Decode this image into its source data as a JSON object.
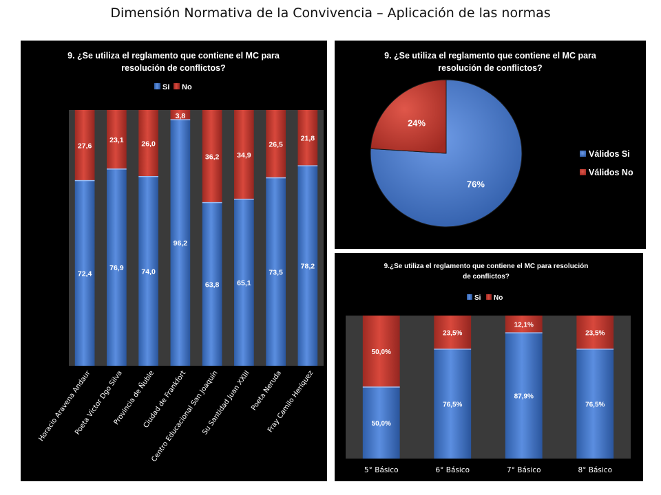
{
  "page": {
    "title": "Dimensión Normativa de la Convivencia – Aplicación de las normas"
  },
  "colors": {
    "si": "#4472c4",
    "no": "#c0392b",
    "plot_bg": "#3a3a3a",
    "panel_bg": "#000000",
    "text": "#ffffff"
  },
  "chart_data": [
    {
      "type": "bar",
      "stacked": true,
      "title": "9. ¿Se utiliza el reglamento que contiene el MC para resolución de conflictos?",
      "title_lines": [
        "9. ¿Se utiliza el reglamento que contiene el MC para",
        "resolución de conflictos?"
      ],
      "categories": [
        "Horacio Aravena Andaur",
        "Poeta Víctor Dgo Silva",
        "Provincia de Ñuble",
        "Ciudad de Frankfort",
        "Centro Educacional San Joaquín",
        "Su Santidad Juan XXIII",
        "Poeta Neruda",
        "Fray Camilo Heríquez"
      ],
      "series": [
        {
          "name": "Si",
          "values": [
            72.4,
            76.9,
            74.0,
            96.2,
            63.8,
            65.1,
            73.5,
            78.2
          ],
          "labels": [
            "72,4",
            "76,9",
            "74,0",
            "96,2",
            "63,8",
            "65,1",
            "73,5",
            "78,2"
          ]
        },
        {
          "name": "No",
          "values": [
            27.6,
            23.1,
            26.0,
            3.8,
            36.2,
            34.9,
            26.5,
            21.8
          ],
          "labels": [
            "27,6",
            "23,1",
            "26,0",
            "3,8",
            "36,2",
            "34,9",
            "26,5",
            "21,8"
          ]
        }
      ],
      "ylim": [
        0,
        100
      ],
      "legend": "top"
    },
    {
      "type": "pie",
      "title": "9. ¿Se utiliza el reglamento que contiene el MC para resolución de conflictos?",
      "title_lines": [
        "9. ¿Se utiliza el reglamento que contiene el MC para",
        "resolución de conflictos?"
      ],
      "slices": [
        {
          "name": "Válidos Si",
          "value": 76,
          "label": "76%"
        },
        {
          "name": "Válidos No",
          "value": 24,
          "label": "24%"
        }
      ],
      "legend": "right"
    },
    {
      "type": "bar",
      "stacked": true,
      "title": "9.¿Se utiliza el reglamento que contiene el MC para resolución de conflictos?",
      "title_lines": [
        "9.¿Se utiliza el reglamento que contiene el MC para resolución",
        "de conflictos?"
      ],
      "categories": [
        "5° Básico",
        "6° Básico",
        "7° Básico",
        "8° Básico"
      ],
      "series": [
        {
          "name": "Si",
          "values": [
            50.0,
            76.5,
            87.9,
            76.5
          ],
          "labels": [
            "50,0%",
            "76,5%",
            "87,9%",
            "76,5%"
          ]
        },
        {
          "name": "No",
          "values": [
            50.0,
            23.5,
            12.1,
            23.5
          ],
          "labels": [
            "50,0%",
            "23,5%",
            "12,1%",
            "23,5%"
          ]
        }
      ],
      "ylim": [
        0,
        100
      ],
      "legend": "top"
    }
  ]
}
